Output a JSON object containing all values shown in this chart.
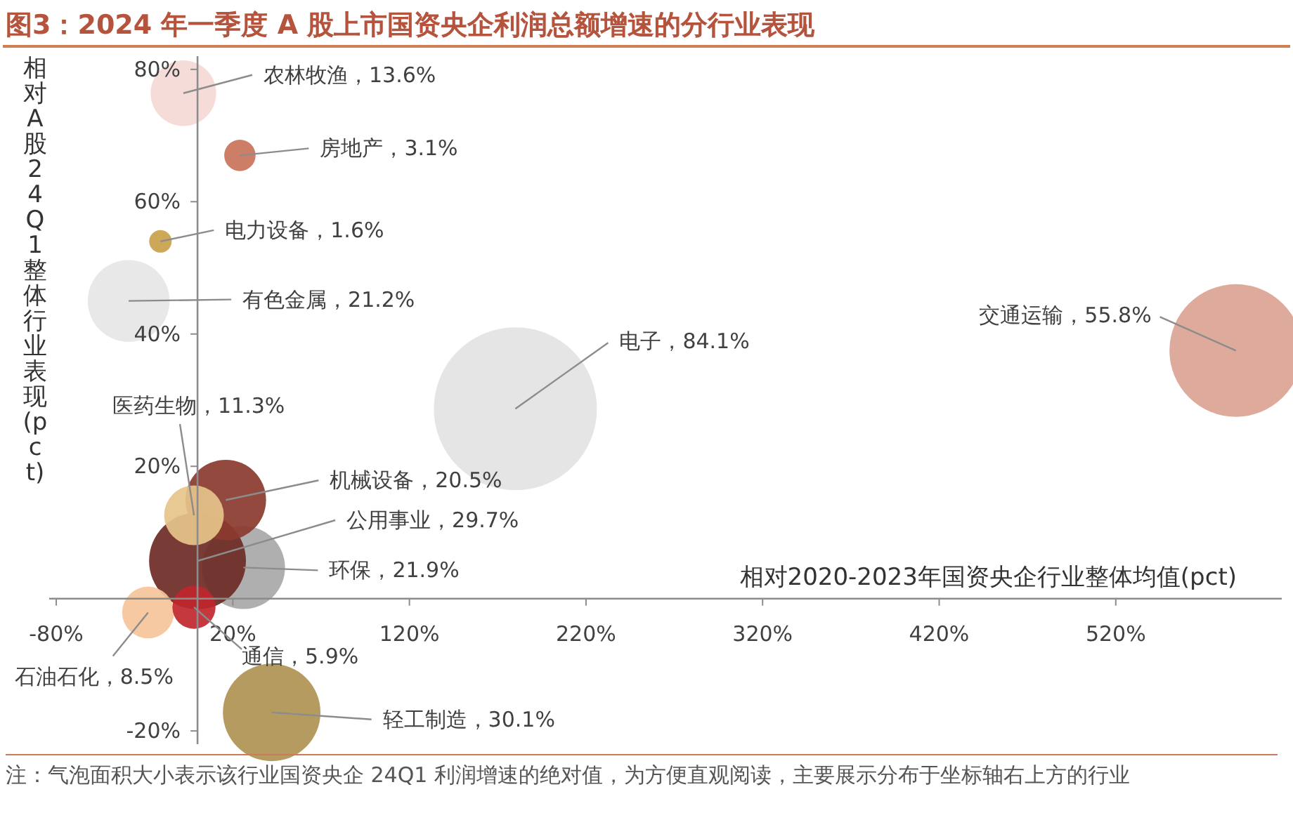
{
  "chart_data": {
    "type": "bubble",
    "title": "图3：2024 年一季度 A 股上市国资央企利润总额增速的分行业表现",
    "xlabel": "相对2020-2023年国资央企行业整体均值(pct)",
    "ylabel": "相对A股24Q1整体行业表现(pct)",
    "x": [
      588,
      180,
      -39,
      -8,
      24,
      -21,
      42,
      26,
      0,
      16,
      -2,
      -28,
      -2
    ],
    "values": [
      37.5,
      28.7,
      45,
      76.4,
      67,
      54,
      -17.2,
      4.7,
      5.7,
      14.9,
      12.6,
      -2.1,
      -1.3
    ],
    "sizes": [
      0.663,
      1,
      0.252,
      0.162,
      0.037,
      0.019,
      0.358,
      0.26,
      0.353,
      0.244,
      0.134,
      0.101,
      0.07
    ],
    "colors": [
      "#dba393",
      "#e3e3e3",
      "#e6e6e6",
      "#f4d9d5",
      "#c8735a",
      "#c9a14a",
      "#b09252",
      "#a8a8a8",
      "#6e2a25",
      "#8b3a2e",
      "#e6c48a",
      "#f6c49a",
      "#c0272d"
    ],
    "xlim": [
      -84,
      614
    ],
    "ylim": [
      -22,
      82
    ],
    "xticks": [
      {
        "value": -80,
        "label": "-80%"
      },
      {
        "value": 20,
        "label": "20%"
      },
      {
        "value": 120,
        "label": "120%"
      },
      {
        "value": 220,
        "label": "220%"
      },
      {
        "value": 320,
        "label": "320%"
      },
      {
        "value": 420,
        "label": "420%"
      },
      {
        "value": 520,
        "label": "520%"
      }
    ],
    "yticks": [
      {
        "value": -20,
        "label": "-20%"
      },
      {
        "value": 0,
        "label": null
      },
      {
        "value": 20,
        "label": "20%"
      },
      {
        "value": 40,
        "label": "40%"
      },
      {
        "value": 60,
        "label": "60%"
      },
      {
        "value": 80,
        "label": "80%"
      }
    ],
    "annotations": [
      {
        "text": "交通运输，55.8%",
        "x": 588,
        "y": 37.5
      },
      {
        "text": "电子，84.1%",
        "x": 180,
        "y": 28.7
      },
      {
        "text": "有色金属，21.2%",
        "x": -39,
        "y": 45
      },
      {
        "text": "农林牧渔，13.6%",
        "x": -8,
        "y": 76.4
      },
      {
        "text": "房地产，3.1%",
        "x": 24,
        "y": 67
      },
      {
        "text": "电力设备，1.6%",
        "x": -21,
        "y": 54
      },
      {
        "text": "轻工制造，30.1%",
        "x": 42,
        "y": -17.2
      },
      {
        "text": "环保，21.9%",
        "x": 26,
        "y": 4.7
      },
      {
        "text": "公用事业，29.7%",
        "x": 0,
        "y": 5.7
      },
      {
        "text": "机械设备，20.5%",
        "x": 16,
        "y": 14.9
      },
      {
        "text": "医药生物，11.3%",
        "x": -2,
        "y": 12.6
      },
      {
        "text": "石油石化，8.5%",
        "x": -28,
        "y": -2.1
      },
      {
        "text": "通信，5.9%",
        "x": -2,
        "y": -1.3
      },
      "注：气泡面积大小表示该行业国资央企 24Q1 利润增速的绝对值，为方便直观阅读，主要展示分布于坐标轴右上方的行业"
    ]
  }
}
